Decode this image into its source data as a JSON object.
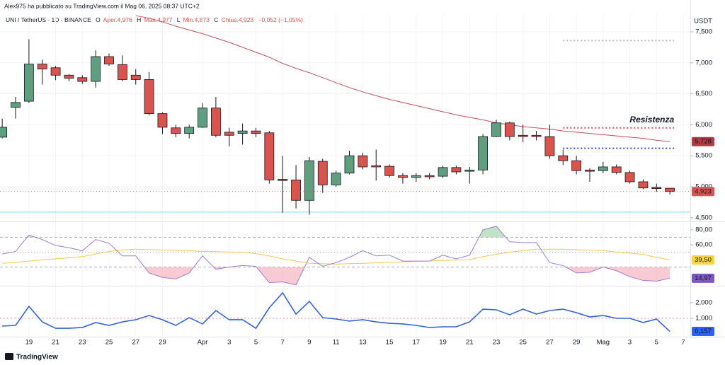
{
  "chart_data": {
    "type": "candlestick",
    "publisher": "Alex975 ha pubblicato su TradingView.com il Mag 06, 2025 08:37 UTC+2",
    "symbol": "UNI / TetherUS · 1D · BINANCE",
    "legend_items": [
      "O",
      "Aper.4,976",
      "H",
      "Max.4,977",
      "L",
      "Min.4,873",
      "C",
      "Chius.4,923",
      "−0,052 (−1,05%)"
    ],
    "currency": "USDT",
    "brand": "TradingView",
    "categories": [
      null,
      null,
      "19",
      null,
      "21",
      null,
      "23",
      null,
      "25",
      null,
      "27",
      null,
      "29",
      null,
      null,
      "Apr",
      null,
      "3",
      null,
      "5",
      null,
      "7",
      null,
      "9",
      null,
      "11",
      null,
      "13",
      null,
      "15",
      null,
      "17",
      null,
      "19",
      null,
      "21",
      null,
      "23",
      null,
      "25",
      null,
      "27",
      null,
      "29",
      null,
      "Mag",
      null,
      "3",
      null,
      "5",
      null,
      "7"
    ],
    "open": [
      5.8,
      6.28,
      6.38,
      6.98,
      6.92,
      6.8,
      6.76,
      6.7,
      7.1,
      6.97,
      6.8,
      6.73,
      6.18,
      5.95,
      5.86,
      5.96,
      6.27,
      5.88,
      5.86,
      5.9,
      5.87,
      5.12,
      5.11,
      4.78,
      5.41,
      5.03,
      5.22,
      5.5,
      5.34,
      5.33,
      5.18,
      5.15,
      5.18,
      5.17,
      5.31,
      5.25,
      5.27,
      5.81,
      6.03,
      5.83,
      5.83,
      5.81,
      5.5,
      5.42,
      5.27,
      5.26,
      5.32,
      5.23,
      5.08,
      4.99,
      4.976,
      null
    ],
    "high": [
      6.1,
      6.45,
      7.38,
      7.05,
      6.95,
      6.82,
      6.8,
      7.2,
      7.15,
      7.12,
      6.9,
      6.85,
      6.2,
      6.0,
      6.0,
      6.35,
      6.45,
      5.95,
      6.02,
      5.95,
      5.9,
      5.5,
      5.35,
      5.48,
      5.45,
      5.26,
      5.58,
      5.55,
      5.6,
      5.36,
      5.22,
      5.22,
      5.22,
      5.34,
      5.34,
      5.32,
      5.85,
      6.08,
      6.05,
      6.0,
      5.9,
      6.0,
      5.6,
      5.5,
      5.3,
      5.4,
      5.36,
      5.26,
      5.12,
      5.05,
      4.977,
      null
    ],
    "low": [
      5.78,
      6.1,
      6.35,
      6.65,
      6.72,
      6.7,
      6.66,
      6.6,
      6.95,
      6.7,
      6.65,
      6.15,
      5.85,
      5.8,
      5.78,
      5.95,
      5.8,
      5.65,
      5.68,
      5.8,
      5.05,
      4.58,
      4.65,
      4.55,
      4.9,
      5.0,
      5.2,
      5.28,
      5.1,
      5.15,
      5.05,
      5.08,
      5.12,
      5.14,
      5.2,
      5.05,
      5.2,
      5.8,
      5.75,
      5.72,
      5.75,
      5.45,
      5.35,
      5.2,
      5.08,
      5.22,
      5.2,
      5.05,
      4.96,
      4.92,
      4.873,
      null
    ],
    "close": [
      5.96,
      6.36,
      6.98,
      6.9,
      6.8,
      6.75,
      6.7,
      7.1,
      6.98,
      6.73,
      6.73,
      6.18,
      5.96,
      5.86,
      5.96,
      6.27,
      5.83,
      5.83,
      5.9,
      5.86,
      5.11,
      5.1,
      4.78,
      5.42,
      5.03,
      5.22,
      5.5,
      5.32,
      5.32,
      5.18,
      5.15,
      5.18,
      5.16,
      5.31,
      5.24,
      5.27,
      5.81,
      6.03,
      5.81,
      5.81,
      5.81,
      5.5,
      5.42,
      5.26,
      5.25,
      5.32,
      5.23,
      5.08,
      4.98,
      4.97,
      4.923,
      null
    ],
    "close_label": "4,923",
    "up_color": "#5f9e7f",
    "down_color": "#d9534f",
    "ma": {
      "color": "#c0505a",
      "value_label": "5,728",
      "values": [
        null,
        null,
        null,
        null,
        null,
        null,
        null,
        null,
        null,
        null,
        7.76,
        7.72,
        7.66,
        7.59,
        7.53,
        7.47,
        7.4,
        7.33,
        7.25,
        7.17,
        7.09,
        6.99,
        6.91,
        6.84,
        6.76,
        6.68,
        6.6,
        6.53,
        6.47,
        6.41,
        6.36,
        6.31,
        6.26,
        6.21,
        6.16,
        6.12,
        6.08,
        6.03,
        6.0,
        5.97,
        5.95,
        5.93,
        5.9,
        5.88,
        5.86,
        5.84,
        5.82,
        5.8,
        5.78,
        5.75,
        5.728,
        null
      ]
    },
    "ylim": [
      4.452,
      7.785
    ],
    "yticks": [
      {
        "value": 7.5,
        "label": "7,500"
      },
      {
        "value": 7,
        "label": "7,000"
      },
      {
        "value": 6.5,
        "label": "6,500"
      },
      {
        "value": 6,
        "label": "6,000"
      },
      {
        "value": 5.5,
        "label": "5,500"
      },
      {
        "value": 5,
        "label": "5,000"
      },
      {
        "value": 4.5,
        "label": "4,500"
      }
    ],
    "lines": [
      {
        "label": "Resistenza",
        "value": 5.95,
        "color": "#e8475f",
        "start": 42
      },
      {
        "value": 5.62,
        "color": "#2b4ea8",
        "start": 42
      },
      {
        "value": 7.36,
        "color": "#b8b8b8",
        "start": 42
      },
      {
        "value": 4.59,
        "color": "#8fd6e3",
        "start": 0
      }
    ],
    "rsi": {
      "color": "#9b7fd0",
      "value_label": "14,97",
      "values": [
        47.5,
        51,
        73,
        67,
        59,
        56,
        52,
        67,
        62,
        45,
        45,
        22,
        16,
        14,
        22,
        45,
        27,
        30,
        32,
        31,
        9,
        10,
        6,
        43,
        31,
        36,
        43,
        52,
        45,
        46,
        38,
        38,
        38,
        46,
        41,
        46,
        80,
        85,
        64,
        63,
        63,
        36,
        32,
        22,
        23,
        30,
        25,
        17,
        12,
        11,
        14.97,
        null
      ],
      "ma": {
        "color": "#f5c94a",
        "value_label": "39,50",
        "values": [
          35,
          36.5,
          38,
          39.5,
          41,
          42.5,
          44,
          47.5,
          51,
          53,
          54,
          53.5,
          53,
          52.5,
          52,
          51,
          50.7,
          50.3,
          50,
          48,
          45,
          41,
          38,
          35,
          34.5,
          34,
          34.5,
          35,
          35.7,
          36.3,
          37,
          37.6,
          38.2,
          38.8,
          39.4,
          40,
          44,
          47,
          50,
          52,
          54,
          54,
          54,
          53.3,
          52.7,
          52,
          50.3,
          48.7,
          47,
          43,
          39.5,
          null
        ]
      },
      "levels": [
        70,
        50,
        30
      ],
      "ylim": [
        4.8,
        89.5
      ],
      "yticks": [
        {
          "value": 80,
          "label": "80,00"
        },
        {
          "value": 60,
          "label": "60,00"
        }
      ]
    },
    "oscillator": {
      "color": "#3563d9",
      "value_label": "0,157",
      "values": [
        0.5,
        0.545,
        1.77,
        0.77,
        0.36,
        0.36,
        0.41,
        0.73,
        0.545,
        0.77,
        0.91,
        1.18,
        0.91,
        0.545,
        1.045,
        0.64,
        1.5,
        0.91,
        0.91,
        0.36,
        1.68,
        2.64,
        1.27,
        2.09,
        1.045,
        0.955,
        0.82,
        0.91,
        0.77,
        0.68,
        0.64,
        0.545,
        0.41,
        0.455,
        0.455,
        0.77,
        1.59,
        1.545,
        1.23,
        1.59,
        1.27,
        1.5,
        1.59,
        1.36,
        1.09,
        1.18,
        1.0,
        1.0,
        0.73,
        0.955,
        0.157,
        null
      ],
      "level": 1,
      "ylim": [
        -0.136,
        3.045
      ],
      "yticks": [
        {
          "value": 2,
          "label": "2,000"
        },
        {
          "value": 1,
          "label": "1,000"
        }
      ]
    }
  }
}
